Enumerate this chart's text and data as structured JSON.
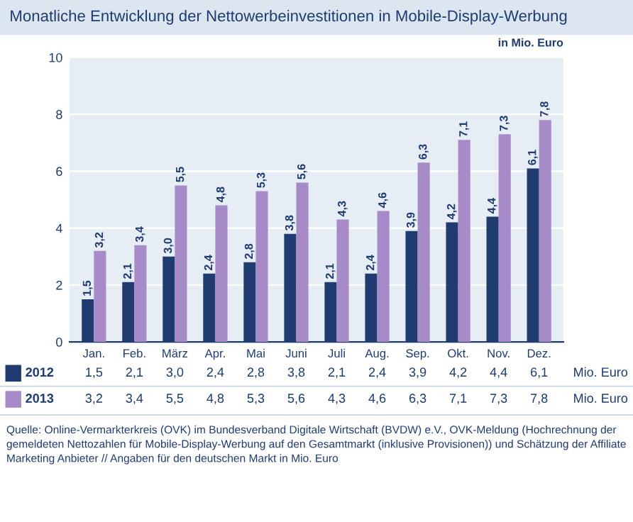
{
  "chart_data": {
    "type": "bar",
    "title": "Monatliche Entwicklung der Nettowerbeinvestitionen in Mobile-Display-Werbung",
    "categories": [
      "Jan.",
      "Feb.",
      "März",
      "Apr.",
      "Mai",
      "Juni",
      "Juli",
      "Aug.",
      "Sep.",
      "Okt.",
      "Nov.",
      "Dez."
    ],
    "series": [
      {
        "name": "2012",
        "color": "#1f3b70",
        "values": [
          1.5,
          2.1,
          3.0,
          2.4,
          2.8,
          3.8,
          2.1,
          2.4,
          3.9,
          4.2,
          4.4,
          6.1
        ],
        "value_labels": [
          "1,5",
          "2,1",
          "3,0",
          "2,4",
          "2,8",
          "3,8",
          "2,1",
          "2,4",
          "3,9",
          "4,2",
          "4,4",
          "6,1"
        ]
      },
      {
        "name": "2013",
        "color": "#a68bc8",
        "values": [
          3.2,
          3.4,
          5.5,
          4.8,
          5.3,
          5.6,
          4.3,
          4.6,
          6.3,
          7.1,
          7.3,
          7.8
        ],
        "value_labels": [
          "3,2",
          "3,4",
          "5,5",
          "4,8",
          "5,3",
          "5,6",
          "4,3",
          "4,6",
          "6,3",
          "7,1",
          "7,3",
          "7,8"
        ]
      }
    ],
    "ylim": [
      0,
      10
    ],
    "yticks": [
      0,
      2,
      4,
      6,
      8,
      10
    ],
    "grid": "y",
    "legend": "bottom",
    "ylabel": "in Mio. Euro",
    "annotations": [
      "Mio. Euro",
      "Quelle: Online-Vermarkterkreis (OVK) im Bundesverband Digitale Wirtschaft (BVDW) e.V., OVK-Meldung (Hochrechnung der gemeldeten Nettozahlen für Mobile-Display-Werbung auf den Gesamtmarkt (inklusive Provisionen)) und Schätzung der Affiliate Marketing Anbieter // Angaben für den deutschen Markt in Mio. Euro"
    ]
  }
}
